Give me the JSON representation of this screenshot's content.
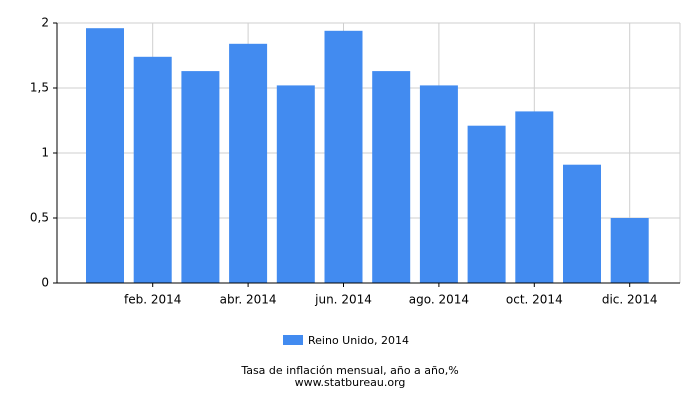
{
  "chart_data": {
    "type": "bar",
    "title": "Tasa de inflación mensual, año a año,%",
    "source": "www.statbureau.org",
    "categories": [
      null,
      "feb. 2014",
      null,
      "abr. 2014",
      null,
      "jun. 2014",
      null,
      "ago. 2014",
      null,
      "oct. 2014",
      null,
      "dic. 2014"
    ],
    "series": [
      {
        "name": "Reino Unido, 2014",
        "color": "#428bf0",
        "values": [
          1.96,
          1.74,
          1.63,
          1.84,
          1.52,
          1.94,
          1.63,
          1.52,
          1.21,
          1.32,
          0.91,
          0.5
        ]
      }
    ],
    "ylim": [
      0,
      2
    ],
    "yticks": [
      0,
      {
        "value": 0.5,
        "label": "0,5"
      },
      1,
      {
        "value": 1.5,
        "label": "1,5"
      },
      2
    ],
    "grid": true
  }
}
